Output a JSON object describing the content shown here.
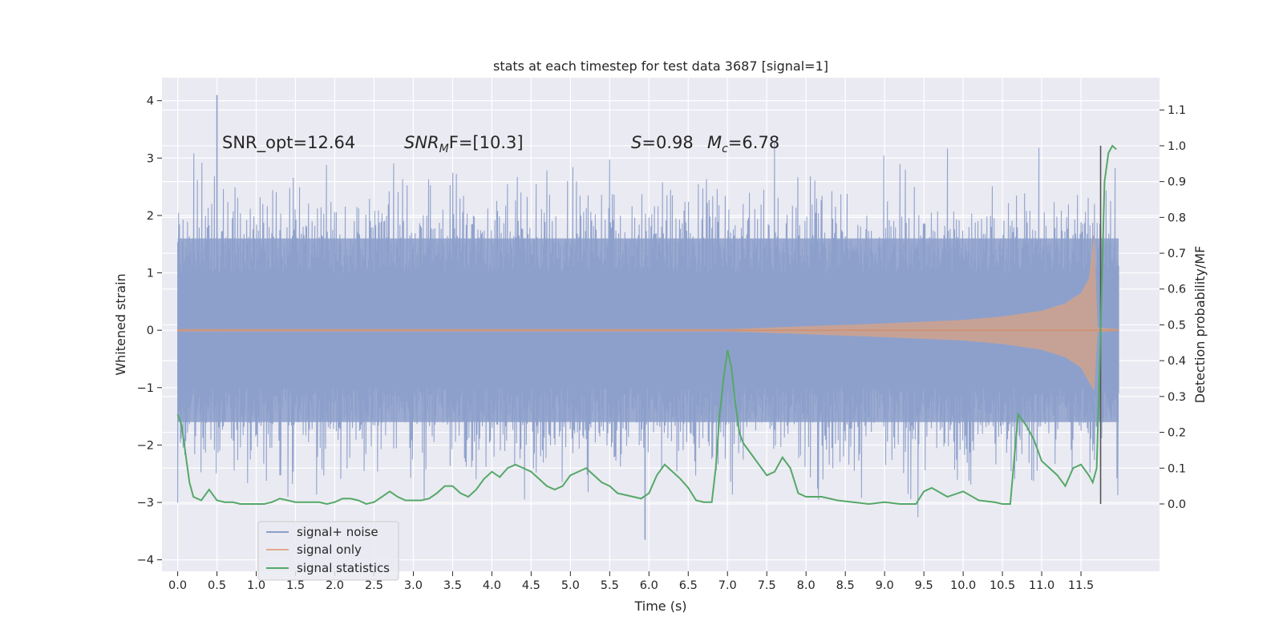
{
  "chart_data": {
    "type": "line",
    "title": "stats at each timestep for test data 3687 [signal=1]",
    "xlabel": "Time (s)",
    "ylabel_left": "Whitened strain",
    "ylabel_right": "Detection probability/MF",
    "xlim": [
      -0.2,
      12.5
    ],
    "ylim_left": [
      -4.2,
      4.4
    ],
    "ylim_right": [
      -0.188,
      1.19
    ],
    "x_ticks": [
      0.0,
      0.5,
      1.0,
      1.5,
      2.0,
      2.5,
      3.0,
      3.5,
      4.0,
      4.5,
      5.0,
      5.5,
      6.0,
      6.5,
      7.0,
      7.5,
      8.0,
      8.5,
      9.0,
      9.5,
      10.0,
      10.5,
      11.0,
      11.5
    ],
    "x_tick_labels": [
      "0.0",
      "0.5",
      "1.0",
      "1.5",
      "2.0",
      "2.5",
      "3.0",
      "3.5",
      "4.0",
      "4.5",
      "5.0",
      "5.5",
      "6.0",
      "6.5",
      "7.0",
      "7.5",
      "8.0",
      "8.5",
      "9.0",
      "9.5",
      "10.0",
      "10.5",
      "11.0",
      "11.5"
    ],
    "y_ticks_left": [
      -4,
      -3,
      -2,
      -1,
      0,
      1,
      2,
      3,
      4
    ],
    "y_tick_labels_left": [
      "−4",
      "−3",
      "−2",
      "−1",
      "0",
      "1",
      "2",
      "3",
      "4"
    ],
    "y_ticks_right": [
      0.0,
      0.1,
      0.2,
      0.3,
      0.4,
      0.5,
      0.6,
      0.7,
      0.8,
      0.9,
      1.0,
      1.1
    ],
    "y_tick_labels_right": [
      "0.0",
      "0.1",
      "0.2",
      "0.3",
      "0.4",
      "0.5",
      "0.6",
      "0.7",
      "0.8",
      "0.9",
      "1.0",
      "1.1"
    ],
    "legend_position": "lower-left",
    "annotations": {
      "snr_opt": "SNR_opt=12.64",
      "snr_mf_main": "SNR",
      "snr_mf_sub": "M",
      "snr_mf_rest": "F=[10.3]",
      "s_var": "S",
      "s_val": "=0.98",
      "mc_var": "M",
      "mc_sub": "c",
      "mc_val": "=6.78"
    },
    "detection_marker_x": 11.75,
    "series": [
      {
        "name": "signal+ noise",
        "axis": "left",
        "color": "#8c9fca",
        "t_start": 0.0,
        "t_end": 11.98,
        "typical_range": [
          -1.6,
          1.6
        ],
        "peak_max": 4.1,
        "peak_min": -3.65
      },
      {
        "name": "signal only",
        "axis": "left",
        "color": "#dd8452",
        "t_start": 0.0,
        "t_end": 11.98,
        "chirp_envelope": [
          [
            0.0,
            0.02
          ],
          [
            7.0,
            0.02
          ],
          [
            8.0,
            0.07
          ],
          [
            9.0,
            0.12
          ],
          [
            10.0,
            0.18
          ],
          [
            10.5,
            0.24
          ],
          [
            11.0,
            0.34
          ],
          [
            11.3,
            0.47
          ],
          [
            11.5,
            0.65
          ],
          [
            11.6,
            0.9
          ],
          [
            11.67,
            1.7
          ],
          [
            11.71,
            0.05
          ],
          [
            11.98,
            0.02
          ]
        ]
      },
      {
        "name": "signal statistics",
        "axis": "right",
        "color": "#55a868",
        "x": [
          0.0,
          0.05,
          0.1,
          0.15,
          0.2,
          0.3,
          0.4,
          0.5,
          0.6,
          0.7,
          0.8,
          0.9,
          1.0,
          1.1,
          1.2,
          1.3,
          1.4,
          1.5,
          1.6,
          1.7,
          1.8,
          1.9,
          2.0,
          2.1,
          2.2,
          2.3,
          2.4,
          2.5,
          2.6,
          2.7,
          2.8,
          2.9,
          3.0,
          3.1,
          3.2,
          3.3,
          3.4,
          3.5,
          3.6,
          3.7,
          3.8,
          3.9,
          4.0,
          4.1,
          4.2,
          4.3,
          4.4,
          4.5,
          4.6,
          4.7,
          4.8,
          4.9,
          5.0,
          5.1,
          5.2,
          5.3,
          5.4,
          5.5,
          5.6,
          5.7,
          5.8,
          5.9,
          6.0,
          6.1,
          6.2,
          6.3,
          6.4,
          6.5,
          6.6,
          6.7,
          6.8,
          6.85,
          6.9,
          6.95,
          7.0,
          7.05,
          7.1,
          7.15,
          7.2,
          7.3,
          7.4,
          7.5,
          7.6,
          7.7,
          7.8,
          7.9,
          8.0,
          8.2,
          8.4,
          8.6,
          8.8,
          9.0,
          9.2,
          9.4,
          9.5,
          9.6,
          9.8,
          10.0,
          10.2,
          10.4,
          10.5,
          10.6,
          10.7,
          10.8,
          10.9,
          11.0,
          11.1,
          11.2,
          11.3,
          11.4,
          11.5,
          11.6,
          11.65,
          11.7,
          11.75,
          11.8,
          11.85,
          11.9,
          11.95
        ],
        "values": [
          0.25,
          0.22,
          0.14,
          0.06,
          0.02,
          0.01,
          0.04,
          0.01,
          0.005,
          0.005,
          0.0,
          0.0,
          0.0,
          0.0,
          0.005,
          0.015,
          0.01,
          0.005,
          0.005,
          0.005,
          0.005,
          0.0,
          0.005,
          0.015,
          0.015,
          0.01,
          0.0,
          0.005,
          0.02,
          0.035,
          0.02,
          0.01,
          0.01,
          0.01,
          0.015,
          0.03,
          0.05,
          0.05,
          0.03,
          0.02,
          0.04,
          0.07,
          0.09,
          0.075,
          0.1,
          0.11,
          0.1,
          0.09,
          0.07,
          0.05,
          0.04,
          0.05,
          0.08,
          0.09,
          0.1,
          0.08,
          0.06,
          0.05,
          0.03,
          0.025,
          0.02,
          0.015,
          0.03,
          0.08,
          0.11,
          0.09,
          0.07,
          0.045,
          0.01,
          0.005,
          0.005,
          0.1,
          0.25,
          0.35,
          0.43,
          0.38,
          0.28,
          0.2,
          0.17,
          0.14,
          0.11,
          0.08,
          0.09,
          0.13,
          0.1,
          0.03,
          0.02,
          0.02,
          0.01,
          0.005,
          0.0,
          0.005,
          0.0,
          0.0,
          0.035,
          0.045,
          0.02,
          0.035,
          0.01,
          0.005,
          0.0,
          0.0,
          0.25,
          0.22,
          0.18,
          0.12,
          0.1,
          0.08,
          0.05,
          0.1,
          0.11,
          0.08,
          0.06,
          0.1,
          0.48,
          0.9,
          0.98,
          1.0,
          0.99
        ]
      }
    ]
  }
}
